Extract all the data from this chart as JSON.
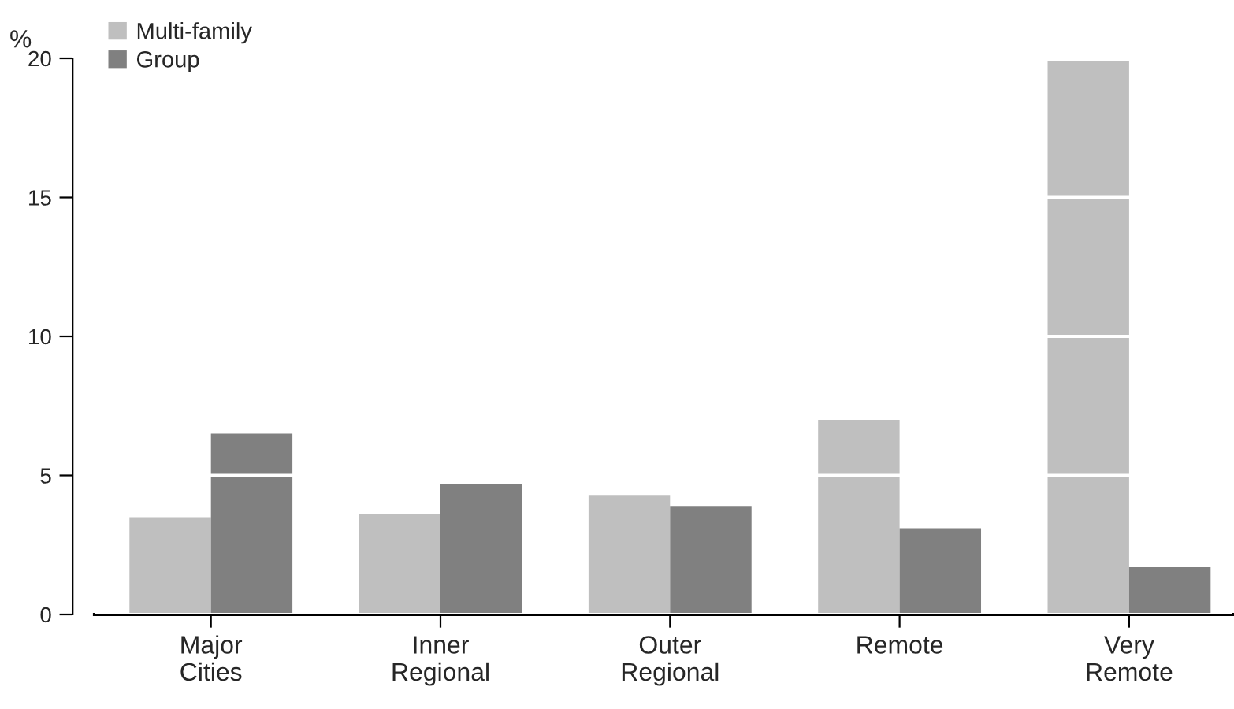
{
  "chart_data": {
    "type": "bar",
    "ylabel": "%",
    "categories": [
      "Major\nCities",
      "Inner\nRegional",
      "Outer\nRegional",
      "Remote",
      "Very\nRemote"
    ],
    "series": [
      {
        "name": "Multi-family",
        "color": "#bfbfbf",
        "values": [
          3.5,
          3.6,
          4.3,
          7.0,
          19.9
        ]
      },
      {
        "name": "Group",
        "color": "#808080",
        "values": [
          6.5,
          4.7,
          3.9,
          3.1,
          1.7
        ]
      }
    ],
    "ylim": [
      0,
      20
    ],
    "yticks": [
      0,
      5,
      10,
      15,
      20
    ],
    "grid": "y",
    "legend": "top left"
  }
}
